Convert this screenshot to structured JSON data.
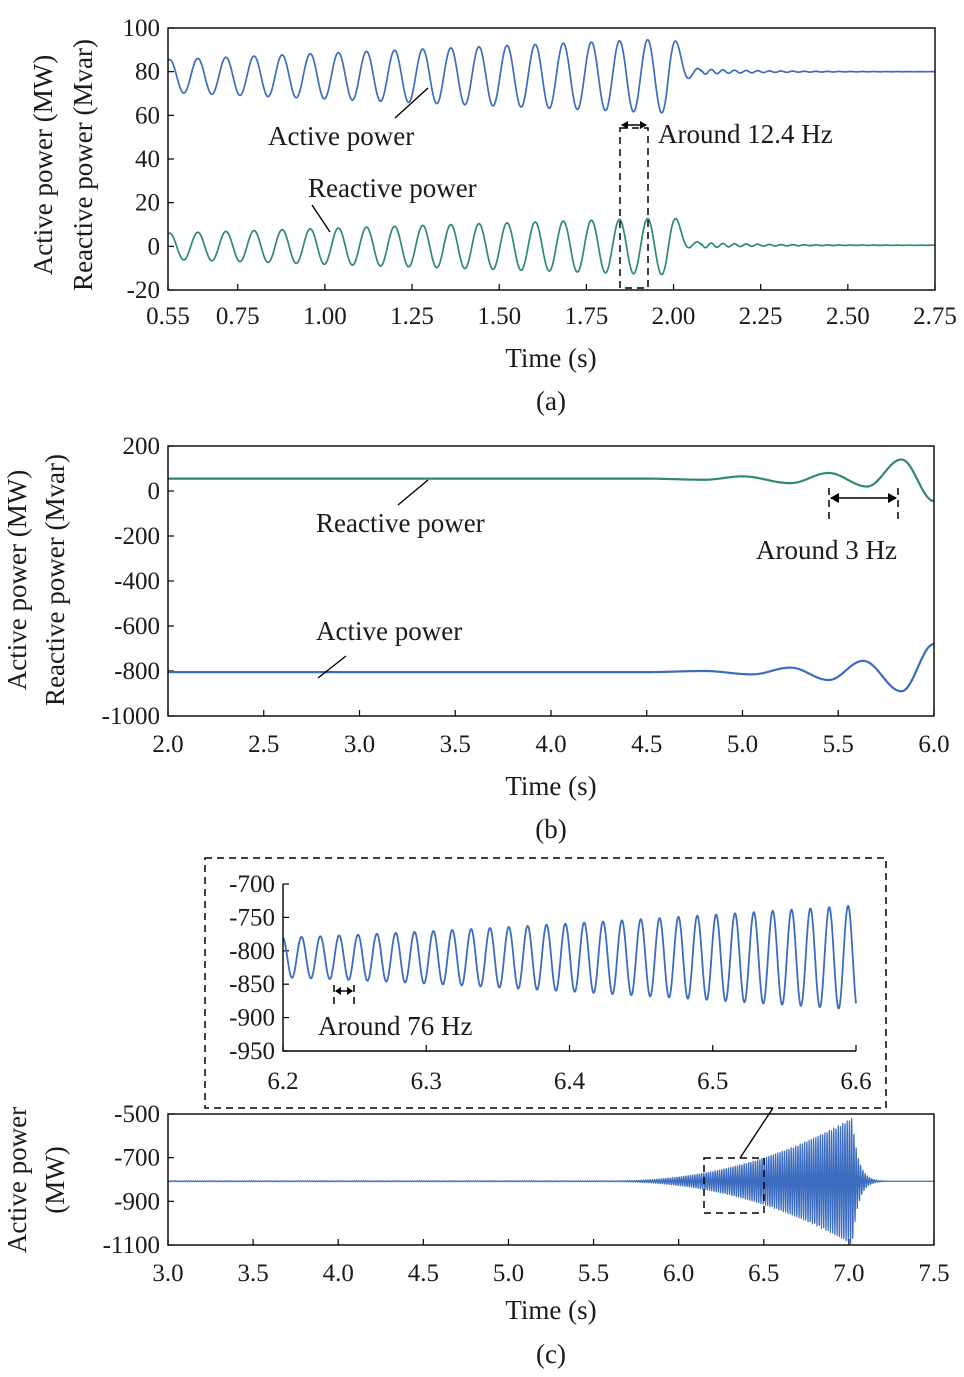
{
  "figure": {
    "captions": [
      "(a)",
      "(b)",
      "(c)"
    ]
  },
  "chart_data": [
    {
      "type": "line",
      "panel": "(a)",
      "xlabel": "Time (s)",
      "ylabel": [
        "Active power (MW)",
        "Reactive power (Mvar)"
      ],
      "xlim": [
        0.55,
        2.75
      ],
      "ylim": [
        -20,
        100
      ],
      "xticks": [
        "0.55",
        "0.75",
        "1.00",
        "1.25",
        "1.50",
        "1.75",
        "2.00",
        "2.25",
        "2.50",
        "2.75"
      ],
      "yticks": [
        "100",
        "80",
        "60",
        "40",
        "20",
        "0",
        "-20"
      ],
      "grid": false,
      "series": [
        {
          "name": "Active power",
          "color": "#3b6cc0",
          "mean": 78,
          "osc_freq_hz": 12.4,
          "amp_start": 7.5,
          "amp_end": 17,
          "decay_start": 1.98,
          "settle_time": 2.08,
          "steady": 80
        },
        {
          "name": "Reactive power",
          "color": "#2e8b66",
          "mean": 0,
          "osc_freq_hz": 12.4,
          "amp_start": 6,
          "amp_end": 13,
          "decay_start": 1.98,
          "settle_time": 2.08,
          "steady": 0.5
        }
      ],
      "annotations": [
        "Active power",
        "Reactive power",
        "Around 12.4 Hz"
      ]
    },
    {
      "type": "line",
      "panel": "(b)",
      "xlabel": "Time (s)",
      "ylabel": [
        "Active power (MW)",
        "Reactive power (Mvar)"
      ],
      "xlim": [
        2.0,
        6.0
      ],
      "ylim": [
        -1000,
        200
      ],
      "xticks": [
        "2.0",
        "2.5",
        "3.0",
        "3.5",
        "4.0",
        "4.5",
        "5.0",
        "5.5",
        "6.0"
      ],
      "yticks": [
        "200",
        "0",
        "-200",
        "-400",
        "-600",
        "-800",
        "-1000"
      ],
      "grid": false,
      "series": [
        {
          "name": "Reactive power",
          "color": "#2e8b66",
          "points": [
            [
              2.0,
              55
            ],
            [
              4.5,
              55
            ],
            [
              4.8,
              50
            ],
            [
              5.0,
              65
            ],
            [
              5.25,
              35
            ],
            [
              5.45,
              80
            ],
            [
              5.65,
              20
            ],
            [
              5.83,
              140
            ],
            [
              6.0,
              -45
            ]
          ]
        },
        {
          "name": "Active power",
          "color": "#3b6cc0",
          "points": [
            [
              2.0,
              -805
            ],
            [
              4.5,
              -805
            ],
            [
              4.8,
              -800
            ],
            [
              5.05,
              -815
            ],
            [
              5.25,
              -785
            ],
            [
              5.45,
              -840
            ],
            [
              5.63,
              -755
            ],
            [
              5.83,
              -890
            ],
            [
              6.0,
              -680
            ]
          ]
        }
      ],
      "annotations": [
        "Reactive power",
        "Active power",
        "Around 3 Hz"
      ]
    },
    {
      "type": "line",
      "panel": "(c)",
      "xlabel": "Time (s)",
      "ylabel": [
        "Active power",
        "(MW)"
      ],
      "xlim": [
        3.0,
        7.5
      ],
      "ylim": [
        -1100,
        -500
      ],
      "xticks": [
        "3.0",
        "3.5",
        "4.0",
        "4.5",
        "5.0",
        "5.5",
        "6.0",
        "6.5",
        "7.0",
        "7.5"
      ],
      "yticks": [
        "-500",
        "-700",
        "-900",
        "-1100"
      ],
      "grid": false,
      "series": [
        {
          "name": "Active power",
          "color": "#3b6cc0",
          "mean": -808,
          "osc_freq_hz": 76,
          "growth_start": 5.6,
          "peak_time": 7.02,
          "peak_amp": 290
        }
      ],
      "inset": {
        "xlim": [
          6.2,
          6.6
        ],
        "ylim": [
          -950,
          -700
        ],
        "xticks": [
          "6.2",
          "6.3",
          "6.4",
          "6.5",
          "6.6"
        ],
        "yticks": [
          "-700",
          "-750",
          "-800",
          "-850",
          "-900",
          "-950"
        ],
        "mean": -810,
        "osc_freq_hz": 76,
        "amp_start": 30,
        "amp_end": 78,
        "annotation": "Around 76 Hz"
      }
    }
  ]
}
